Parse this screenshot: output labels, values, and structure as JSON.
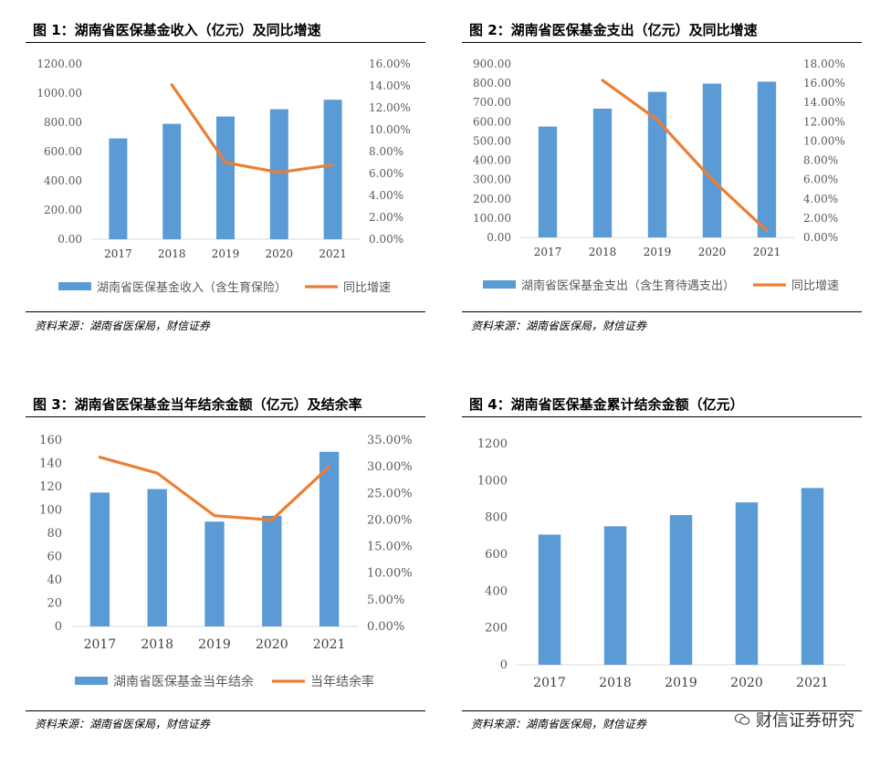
{
  "colors": {
    "bar": "#5B9BD5",
    "line": "#ED7D31",
    "axis": "#595959",
    "grid": "#D9D9D9"
  },
  "panels": [
    {
      "title": "图 1：湖南省医保基金收入（亿元）及同比增速",
      "source": "资料来源：湖南省医保局，财信证券",
      "chart_data": {
        "type": "bar",
        "categories": [
          "2017",
          "2018",
          "2019",
          "2020",
          "2021"
        ],
        "series": [
          {
            "name": "湖南省医保基金收入（含生育保险）",
            "type": "bar",
            "axis": "left",
            "values": [
              690,
              790,
              840,
              890,
              955
            ]
          },
          {
            "name": "同比增速",
            "type": "line",
            "axis": "right",
            "values": [
              null,
              14.1,
              7.0,
              6.1,
              6.8
            ]
          }
        ],
        "ylim_left": [
          0,
          1200
        ],
        "yticks_left": [
          "0.00",
          "200.00",
          "400.00",
          "600.00",
          "800.00",
          "1000.00",
          "1200.00"
        ],
        "ylim_right": [
          0,
          16
        ],
        "yticks_right": [
          "0.00%",
          "2.00%",
          "4.00%",
          "6.00%",
          "8.00%",
          "10.00%",
          "12.00%",
          "14.00%",
          "16.00%"
        ],
        "legend": "bottom",
        "grid": false
      }
    },
    {
      "title": "图 2：湖南省医保基金支出（亿元）及同比增速",
      "source": "资料来源：湖南省医保局，财信证券",
      "chart_data": {
        "type": "bar",
        "categories": [
          "2017",
          "2018",
          "2019",
          "2020",
          "2021"
        ],
        "series": [
          {
            "name": "湖南省医保基金支出（含生育待遇支出）",
            "type": "bar",
            "axis": "left",
            "values": [
              575,
              668,
              755,
              798,
              808
            ]
          },
          {
            "name": "同比增速",
            "type": "line",
            "axis": "right",
            "values": [
              null,
              16.3,
              12.2,
              6.0,
              0.7
            ]
          }
        ],
        "ylim_left": [
          0,
          900
        ],
        "yticks_left": [
          "0.00",
          "100.00",
          "200.00",
          "300.00",
          "400.00",
          "500.00",
          "600.00",
          "700.00",
          "800.00",
          "900.00"
        ],
        "ylim_right": [
          0,
          18
        ],
        "yticks_right": [
          "0.00%",
          "2.00%",
          "4.00%",
          "6.00%",
          "8.00%",
          "10.00%",
          "12.00%",
          "14.00%",
          "16.00%",
          "18.00%"
        ],
        "legend": "bottom",
        "grid": false
      }
    },
    {
      "title": "图 3：湖南省医保基金当年结余金额（亿元）及结余率",
      "source": "资料来源：湖南省医保局，财信证券",
      "chart_data": {
        "type": "bar",
        "categories": [
          "2017",
          "2018",
          "2019",
          "2020",
          "2021"
        ],
        "series": [
          {
            "name": "湖南省医保基金当年结余",
            "type": "bar",
            "axis": "left",
            "values": [
              115,
              118,
              90,
              95,
              150
            ]
          },
          {
            "name": "当年结余率",
            "type": "line",
            "axis": "right",
            "values": [
              31.8,
              28.8,
              20.8,
              20.0,
              30.0
            ]
          }
        ],
        "ylim_left": [
          0,
          160
        ],
        "yticks_left": [
          "0",
          "20",
          "40",
          "60",
          "80",
          "100",
          "120",
          "140",
          "160"
        ],
        "ylim_right": [
          0,
          35
        ],
        "yticks_right": [
          "0.00%",
          "5.00%",
          "10.00%",
          "15.00%",
          "20.00%",
          "25.00%",
          "30.00%",
          "35.00%"
        ],
        "legend": "bottom",
        "grid": false
      }
    },
    {
      "title": "图 4：湖南省医保基金累计结余金额（亿元）",
      "source": "资料来源：湖南省医保局，财信证券",
      "chart_data": {
        "type": "bar",
        "categories": [
          "2017",
          "2018",
          "2019",
          "2020",
          "2021"
        ],
        "series": [
          {
            "name": "",
            "type": "bar",
            "axis": "left",
            "values": [
              707,
              752,
              813,
              882,
              960
            ]
          }
        ],
        "ylim_left": [
          0,
          1200
        ],
        "yticks_left": [
          "0",
          "200",
          "400",
          "600",
          "800",
          "1000",
          "1200"
        ],
        "legend": "none",
        "grid": false
      }
    }
  ],
  "watermark": {
    "icon": "wechat-icon",
    "text": "财信证券研究"
  }
}
